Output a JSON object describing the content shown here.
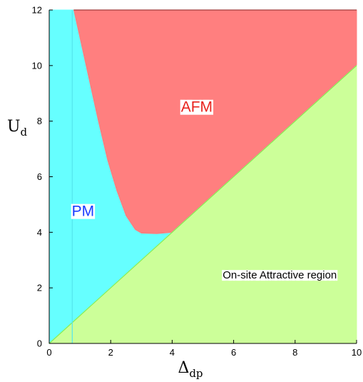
{
  "chart_data": {
    "type": "area",
    "title": "",
    "xlabel": {
      "main": "Δ",
      "sub": "dp"
    },
    "ylabel": {
      "main": "U",
      "sub": "d"
    },
    "xlim": [
      0,
      10
    ],
    "ylim": [
      0,
      12
    ],
    "xticks": [
      0,
      2,
      4,
      6,
      8,
      10
    ],
    "yticks": [
      0,
      2,
      4,
      6,
      8,
      10,
      12
    ],
    "grid": false,
    "regions": [
      {
        "name": "PM",
        "color": "#66ffff",
        "label": {
          "text": "PM",
          "x": 1.1,
          "y": 4.75,
          "color": "#1a3cff",
          "background": "#ffffff"
        },
        "boundary": [
          [
            0,
            0
          ],
          [
            0,
            12
          ],
          [
            0.8,
            12
          ],
          [
            4,
            4
          ],
          [
            0,
            0
          ]
        ]
      },
      {
        "name": "AFM",
        "color": "#ff7f7f",
        "label": {
          "text": "AFM",
          "x": 4.8,
          "y": 8.5,
          "color": "#e8221c",
          "background": "#ffffff"
        },
        "boundary": [
          [
            0.8,
            12
          ],
          [
            1.0,
            11.0
          ],
          [
            1.3,
            9.5
          ],
          [
            1.6,
            8.0
          ],
          [
            1.9,
            6.6
          ],
          [
            2.2,
            5.5
          ],
          [
            2.5,
            4.6
          ],
          [
            2.8,
            4.1
          ],
          [
            3.0,
            3.97
          ],
          [
            3.5,
            3.95
          ],
          [
            4.0,
            4.0
          ],
          [
            10,
            10
          ],
          [
            10,
            12
          ],
          [
            0.8,
            12
          ]
        ]
      },
      {
        "name": "On-site Attractive region",
        "color": "#ccff99",
        "label": {
          "text": "On-site Attractive region",
          "x": 7.5,
          "y": 2.45,
          "color": "#000000",
          "background": "#ffffff"
        },
        "boundary": [
          [
            0,
            0
          ],
          [
            10,
            10
          ],
          [
            10,
            0
          ],
          [
            0,
            0
          ]
        ]
      }
    ],
    "lines": [
      {
        "name": "diagonal boundary",
        "color": "#88ee55",
        "points": [
          [
            0,
            0
          ],
          [
            10,
            10
          ]
        ]
      },
      {
        "name": "faint vertical",
        "color": "#55e6ee",
        "points": [
          [
            0.75,
            0
          ],
          [
            0.75,
            12
          ]
        ]
      }
    ]
  }
}
